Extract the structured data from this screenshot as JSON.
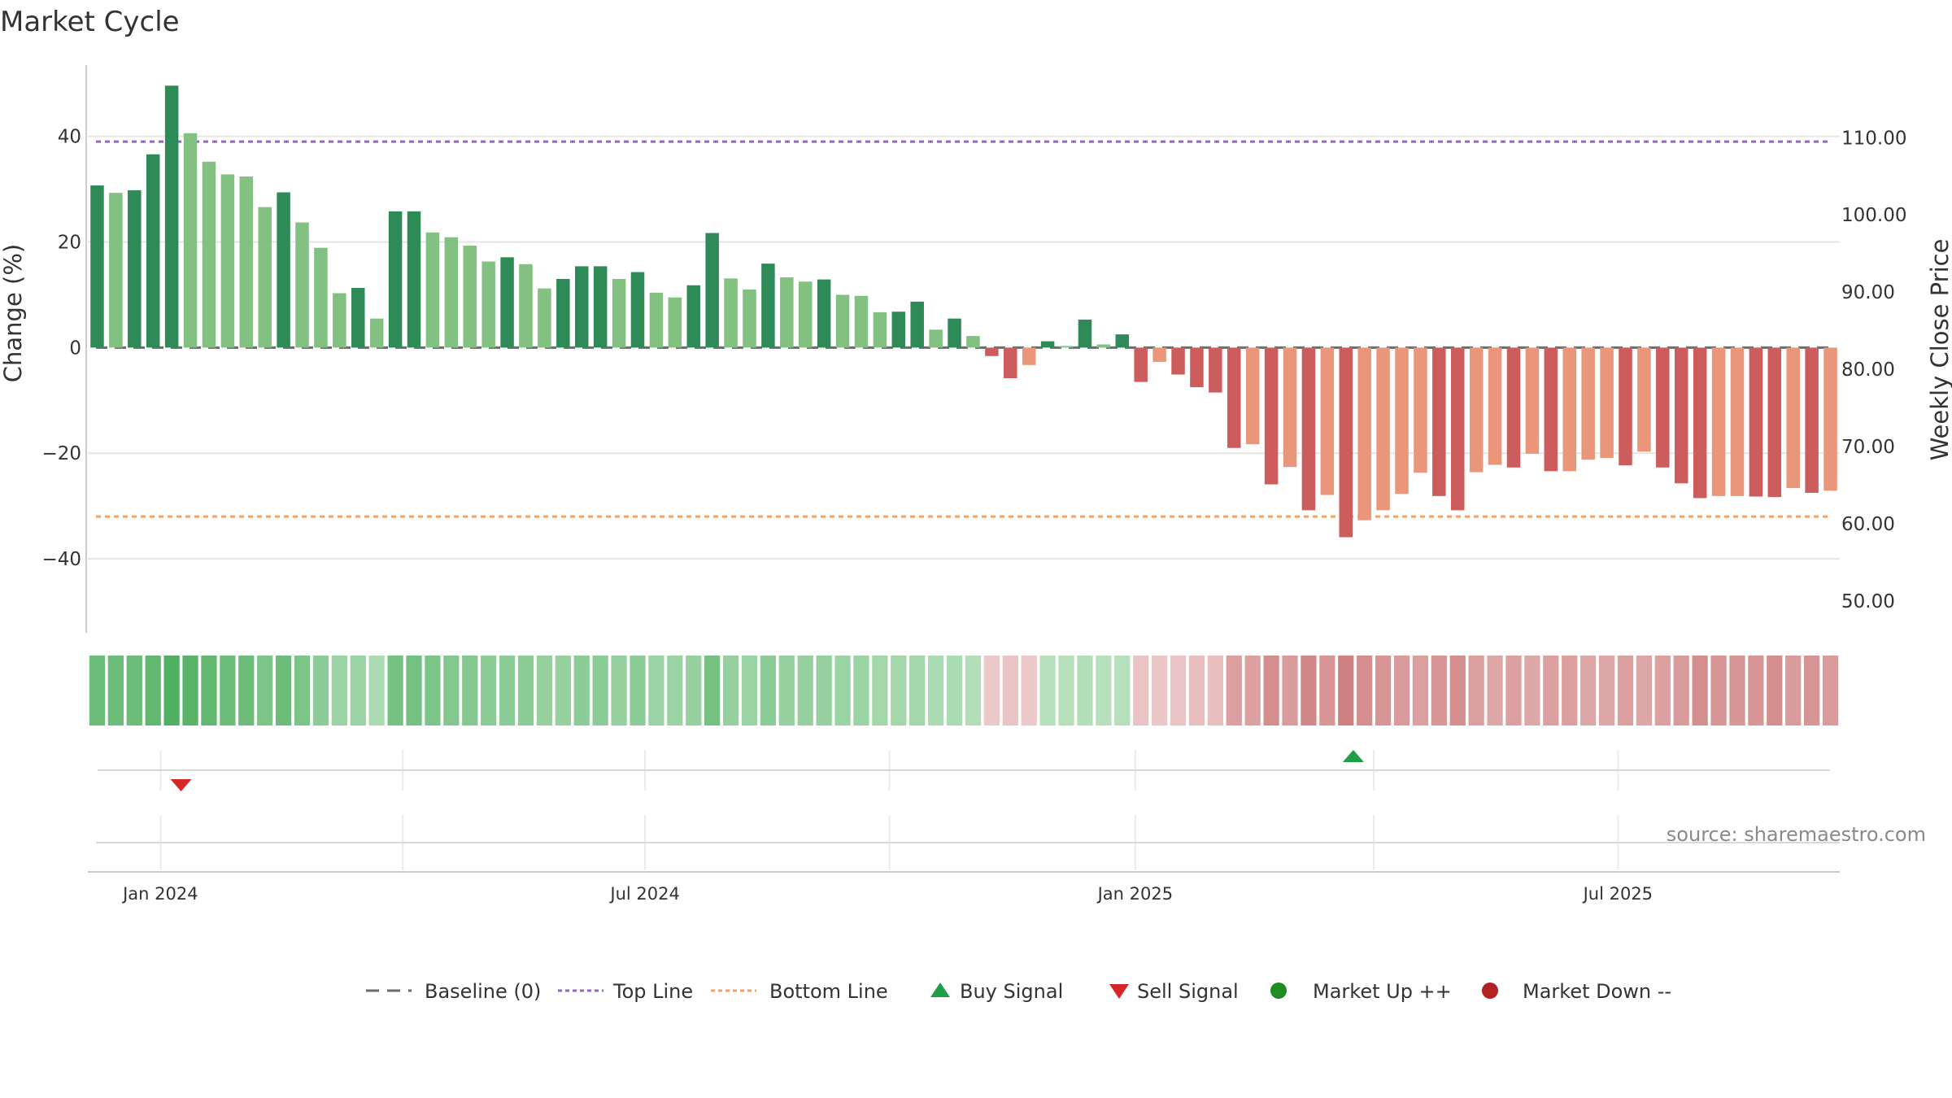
{
  "chart_data": {
    "type": "bar",
    "title": "Market Cycle",
    "ylabel_left": "Change (%)",
    "ylabel_right": "Weekly Close Price",
    "y_left_ticks": [
      "40",
      "20",
      "0",
      "−20",
      "−40"
    ],
    "y_left_range": [
      -54,
      53.5
    ],
    "y_right_ticks": [
      "110.00",
      "100.00",
      "90.00",
      "80.00",
      "70.00",
      "60.00",
      "50.00"
    ],
    "y_right_range": [
      45.9,
      119.4
    ],
    "x_ticks": [
      "Jan 2024",
      "Jul 2024",
      "Jan 2025",
      "Jul 2025"
    ],
    "x_tick_weeks": [
      3.4,
      29.4,
      55.7,
      81.6
    ],
    "weeks": 94,
    "top_line": 39,
    "bottom_line": -32,
    "baseline": 0,
    "grid": true,
    "legend_position": "bottom-center",
    "source": "source: sharemaestro.com",
    "values": [
      30.7,
      29.3,
      29.8,
      36.6,
      49.6,
      40.6,
      35.2,
      32.8,
      32.4,
      26.6,
      29.4,
      23.7,
      18.9,
      10.3,
      11.3,
      5.5,
      25.8,
      25.8,
      21.8,
      20.9,
      19.3,
      16.3,
      17.1,
      15.8,
      11.2,
      13.0,
      15.4,
      15.4,
      13.0,
      14.3,
      10.4,
      9.5,
      11.8,
      21.7,
      13.1,
      11.0,
      15.9,
      13.3,
      12.5,
      12.9,
      10.0,
      9.8,
      6.7,
      6.8,
      8.7,
      3.4,
      5.5,
      2.2,
      -1.6,
      -5.8,
      -3.3,
      1.2,
      0.3,
      5.3,
      0.6,
      2.5,
      -6.5,
      -2.7,
      -5.1,
      -7.5,
      -8.5,
      -19.0,
      -18.3,
      -25.9,
      -22.6,
      -30.8,
      -27.9,
      -35.9,
      -32.7,
      -30.8,
      -27.7,
      -23.7,
      -28.1,
      -30.8,
      -23.6,
      -22.2,
      -22.7,
      -20.1,
      -23.4,
      -23.4,
      -21.2,
      -20.9,
      -22.3,
      -19.7,
      -22.7,
      -25.7,
      -28.5,
      -28.1,
      -28.1,
      -28.2,
      -28.3,
      -26.6,
      -27.5,
      -27.1
    ],
    "bar_shades": [
      "d",
      "l",
      "d",
      "d",
      "d",
      "l",
      "l",
      "l",
      "l",
      "l",
      "d",
      "l",
      "l",
      "l",
      "d",
      "l",
      "d",
      "d",
      "l",
      "l",
      "l",
      "l",
      "d",
      "l",
      "l",
      "d",
      "d",
      "d",
      "l",
      "d",
      "l",
      "l",
      "d",
      "d",
      "l",
      "l",
      "d",
      "l",
      "l",
      "d",
      "l",
      "l",
      "l",
      "d",
      "d",
      "l",
      "d",
      "l",
      "d",
      "d",
      "l",
      "d",
      "l",
      "d",
      "l",
      "d",
      "d",
      "l",
      "d",
      "d",
      "d",
      "d",
      "l",
      "d",
      "l",
      "d",
      "l",
      "d",
      "l",
      "l",
      "l",
      "l",
      "d",
      "d",
      "l",
      "l",
      "d",
      "l",
      "d",
      "l",
      "l",
      "l",
      "d",
      "l",
      "d",
      "d",
      "d",
      "l",
      "l",
      "d",
      "d",
      "l",
      "d",
      "l"
    ],
    "heat_band": [
      0.7,
      0.7,
      0.7,
      0.75,
      0.85,
      0.8,
      0.75,
      0.7,
      0.7,
      0.6,
      0.7,
      0.6,
      0.5,
      0.4,
      0.4,
      0.3,
      0.65,
      0.65,
      0.6,
      0.55,
      0.55,
      0.5,
      0.5,
      0.5,
      0.45,
      0.45,
      0.5,
      0.5,
      0.45,
      0.5,
      0.4,
      0.4,
      0.45,
      0.65,
      0.45,
      0.4,
      0.5,
      0.45,
      0.45,
      0.45,
      0.4,
      0.4,
      0.35,
      0.35,
      0.35,
      0.3,
      0.3,
      0.25,
      -0.2,
      -0.25,
      -0.2,
      0.22,
      0.22,
      0.25,
      0.22,
      0.22,
      -0.25,
      -0.22,
      -0.25,
      -0.3,
      -0.3,
      -0.55,
      -0.55,
      -0.7,
      -0.6,
      -0.75,
      -0.65,
      -0.8,
      -0.7,
      -0.65,
      -0.6,
      -0.55,
      -0.65,
      -0.7,
      -0.55,
      -0.5,
      -0.55,
      -0.5,
      -0.55,
      -0.55,
      -0.5,
      -0.5,
      -0.55,
      -0.5,
      -0.55,
      -0.6,
      -0.7,
      -0.65,
      -0.65,
      -0.65,
      -0.7,
      -0.6,
      -0.65,
      -0.6
    ],
    "signals": [
      {
        "type": "sell",
        "week": 4.5
      },
      {
        "type": "buy",
        "week": 67.4
      }
    ],
    "signal_gridlines_weeks": [
      3.4,
      16.4,
      29.4,
      42.5,
      55.7,
      68.5,
      81.6
    ],
    "legend": [
      {
        "label": "Baseline (0)",
        "symbol": "dash-gray"
      },
      {
        "label": "Top Line",
        "symbol": "dot-purple"
      },
      {
        "label": "Bottom Line",
        "symbol": "dot-orange"
      },
      {
        "label": "Buy Signal",
        "symbol": "triangle-up"
      },
      {
        "label": "Sell Signal",
        "symbol": "triangle-down"
      },
      {
        "label": "Market Up ++",
        "symbol": "circle-green"
      },
      {
        "label": "Market Down --",
        "symbol": "circle-red"
      }
    ],
    "colors": {
      "pos_dark": "#2e8b57",
      "pos_light": "#82c181",
      "neg_dark": "#cd5c5c",
      "neg_light": "#e9967a",
      "top_line": "#9467bd",
      "bottom_line": "#f4a261",
      "baseline": "#6b6b6b",
      "buy": "#1f9e4a",
      "sell": "#d62728",
      "up_dot": "#1e8c1e",
      "down_dot": "#b22222",
      "grid": "#e6e6e6"
    }
  }
}
